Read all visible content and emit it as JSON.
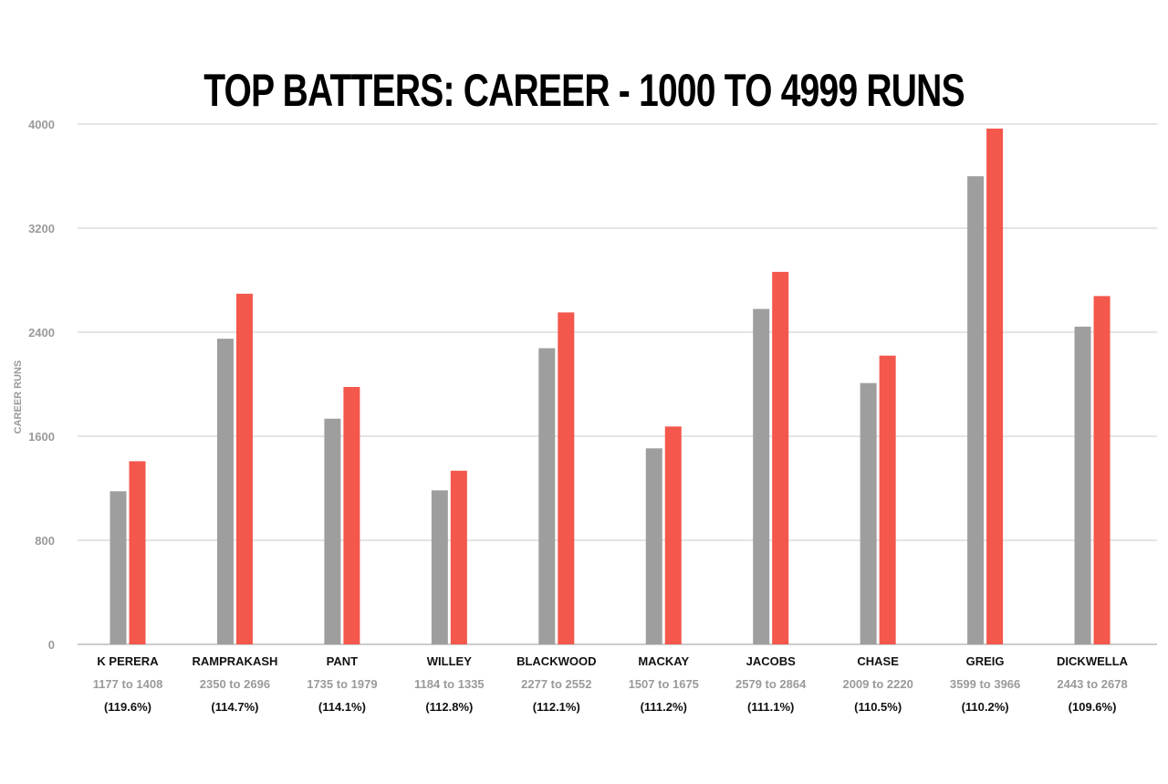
{
  "chart_data": {
    "type": "bar",
    "title": "TOP BATTERS: CAREER - 1000 TO 4999 RUNS",
    "ylabel": "CAREER RUNS",
    "xlabel": "",
    "ylim": [
      0,
      4000
    ],
    "yticks": [
      0,
      800,
      1600,
      2400,
      3200,
      4000
    ],
    "grid": true,
    "categories": [
      "K PERERA",
      "RAMPRAKASH",
      "PANT",
      "WILLEY",
      "BLACKWOOD",
      "MACKAY",
      "JACOBS",
      "CHASE",
      "GREIG",
      "DICKWELLA"
    ],
    "range_labels": [
      "1177 to 1408",
      "2350 to 2696",
      "1735 to 1979",
      "1184 to 1335",
      "2277 to 2552",
      "1507 to 1675",
      "2579 to 2864",
      "2009 to 2220",
      "3599 to 3966",
      "2443 to 2678"
    ],
    "pct_labels": [
      "(119.6%)",
      "(114.7%)",
      "(114.1%)",
      "(112.8%)",
      "(112.1%)",
      "(111.2%)",
      "(111.1%)",
      "(110.5%)",
      "(110.2%)",
      "(109.6%)"
    ],
    "series": [
      {
        "values": [
          1177,
          2350,
          1735,
          1184,
          2277,
          1507,
          2579,
          2009,
          3599,
          2443
        ],
        "color": "#9e9e9e"
      },
      {
        "values": [
          1408,
          2696,
          1979,
          1335,
          2552,
          1675,
          2864,
          2220,
          3966,
          2678
        ],
        "color": "#f4574b"
      }
    ]
  }
}
